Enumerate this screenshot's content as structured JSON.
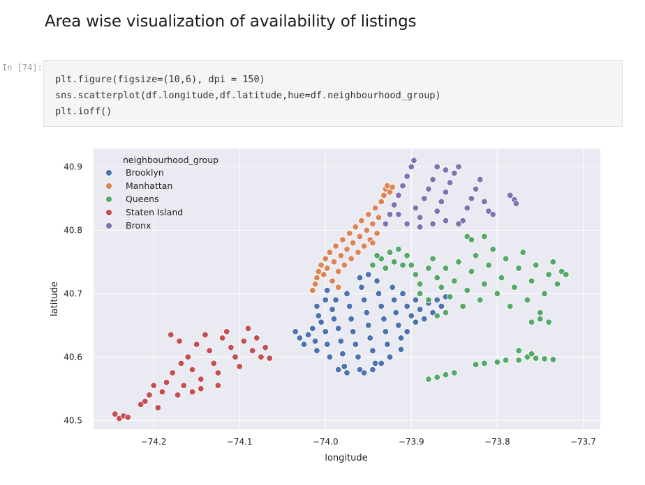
{
  "heading": "Area wise visualization of availability of listings",
  "cell": {
    "prompt": "In [74]:",
    "code_lines": [
      "plt.figure(figsize=(10,6), dpi = 150)",
      "sns.scatterplot(df.longitude,df.latitude,hue=df.neighbourhood_group)",
      "plt.ioff()"
    ]
  },
  "chart_data": {
    "type": "scatter",
    "xlabel": "longitude",
    "ylabel": "latitude",
    "xlim": [
      -74.27,
      -73.68
    ],
    "ylim": [
      40.486,
      40.929
    ],
    "xticks": [
      -74.2,
      -74.1,
      -74.0,
      -73.9,
      -73.8,
      -73.7
    ],
    "xtick_labels": [
      "−74.2",
      "−74.1",
      "−74.0",
      "−73.9",
      "−73.8",
      "−73.7"
    ],
    "yticks": [
      40.5,
      40.6,
      40.7,
      40.8,
      40.9
    ],
    "ytick_labels": [
      "40.5",
      "40.6",
      "40.7",
      "40.8",
      "40.9"
    ],
    "grid": true,
    "legend_title": "neighbourhood_group",
    "legend_position": "top-left",
    "series": [
      {
        "name": "Brooklyn",
        "color": "#4c72b0",
        "points": [
          [
            -74.035,
            40.64
          ],
          [
            -74.03,
            40.63
          ],
          [
            -74.025,
            40.62
          ],
          [
            -74.02,
            40.635
          ],
          [
            -74.015,
            40.645
          ],
          [
            -74.012,
            40.625
          ],
          [
            -74.01,
            40.61
          ],
          [
            -74.005,
            40.655
          ],
          [
            -74.0,
            40.64
          ],
          [
            -73.998,
            40.62
          ],
          [
            -73.995,
            40.6
          ],
          [
            -73.992,
            40.675
          ],
          [
            -73.99,
            40.66
          ],
          [
            -73.988,
            40.69
          ],
          [
            -73.985,
            40.645
          ],
          [
            -73.982,
            40.625
          ],
          [
            -73.98,
            40.605
          ],
          [
            -73.978,
            40.585
          ],
          [
            -73.975,
            40.7
          ],
          [
            -73.972,
            40.68
          ],
          [
            -73.97,
            40.66
          ],
          [
            -73.968,
            40.64
          ],
          [
            -73.965,
            40.62
          ],
          [
            -73.962,
            40.6
          ],
          [
            -73.96,
            40.58
          ],
          [
            -73.958,
            40.71
          ],
          [
            -73.955,
            40.69
          ],
          [
            -73.952,
            40.67
          ],
          [
            -73.95,
            40.65
          ],
          [
            -73.948,
            40.63
          ],
          [
            -73.945,
            40.61
          ],
          [
            -73.942,
            40.59
          ],
          [
            -73.94,
            40.72
          ],
          [
            -73.938,
            40.7
          ],
          [
            -73.935,
            40.68
          ],
          [
            -73.932,
            40.66
          ],
          [
            -73.93,
            40.64
          ],
          [
            -73.928,
            40.62
          ],
          [
            -73.925,
            40.6
          ],
          [
            -73.922,
            40.71
          ],
          [
            -73.92,
            40.69
          ],
          [
            -73.918,
            40.67
          ],
          [
            -73.915,
            40.65
          ],
          [
            -73.912,
            40.63
          ],
          [
            -73.91,
            40.7
          ],
          [
            -73.905,
            40.68
          ],
          [
            -73.9,
            40.665
          ],
          [
            -73.895,
            40.69
          ],
          [
            -73.89,
            40.675
          ],
          [
            -73.885,
            40.66
          ],
          [
            -73.88,
            40.685
          ],
          [
            -73.875,
            40.67
          ],
          [
            -73.87,
            40.69
          ],
          [
            -73.865,
            40.68
          ],
          [
            -73.86,
            40.695
          ],
          [
            -73.955,
            40.575
          ],
          [
            -73.945,
            40.58
          ],
          [
            -73.935,
            40.59
          ],
          [
            -73.975,
            40.575
          ],
          [
            -73.985,
            40.58
          ],
          [
            -73.96,
            40.725
          ],
          [
            -73.95,
            40.73
          ],
          [
            -74.0,
            40.69
          ],
          [
            -74.01,
            40.68
          ],
          [
            -74.008,
            40.665
          ],
          [
            -73.998,
            40.705
          ],
          [
            -73.912,
            40.612
          ],
          [
            -73.905,
            40.64
          ],
          [
            -73.895,
            40.655
          ]
        ]
      },
      {
        "name": "Manhattan",
        "color": "#dd8452",
        "points": [
          [
            -74.015,
            40.705
          ],
          [
            -74.012,
            40.715
          ],
          [
            -74.01,
            40.725
          ],
          [
            -74.008,
            40.735
          ],
          [
            -74.005,
            40.745
          ],
          [
            -74.002,
            40.73
          ],
          [
            -74.0,
            40.755
          ],
          [
            -73.998,
            40.74
          ],
          [
            -73.995,
            40.765
          ],
          [
            -73.992,
            40.72
          ],
          [
            -73.99,
            40.75
          ],
          [
            -73.988,
            40.775
          ],
          [
            -73.985,
            40.735
          ],
          [
            -73.982,
            40.76
          ],
          [
            -73.98,
            40.785
          ],
          [
            -73.978,
            40.745
          ],
          [
            -73.975,
            40.77
          ],
          [
            -73.972,
            40.795
          ],
          [
            -73.97,
            40.755
          ],
          [
            -73.968,
            40.78
          ],
          [
            -73.965,
            40.805
          ],
          [
            -73.962,
            40.765
          ],
          [
            -73.96,
            40.79
          ],
          [
            -73.958,
            40.815
          ],
          [
            -73.955,
            40.775
          ],
          [
            -73.952,
            40.8
          ],
          [
            -73.95,
            40.825
          ],
          [
            -73.948,
            40.785
          ],
          [
            -73.945,
            40.81
          ],
          [
            -73.942,
            40.835
          ],
          [
            -73.94,
            40.795
          ],
          [
            -73.938,
            40.82
          ],
          [
            -73.935,
            40.845
          ],
          [
            -73.932,
            40.855
          ],
          [
            -73.93,
            40.865
          ],
          [
            -73.928,
            40.87
          ],
          [
            -73.925,
            40.86
          ],
          [
            -73.922,
            40.868
          ],
          [
            -73.945,
            40.78
          ],
          [
            -73.985,
            40.71
          ]
        ]
      },
      {
        "name": "Queens",
        "color": "#55a868",
        "points": [
          [
            -73.945,
            40.745
          ],
          [
            -73.935,
            40.755
          ],
          [
            -73.925,
            40.765
          ],
          [
            -73.915,
            40.77
          ],
          [
            -73.905,
            40.76
          ],
          [
            -73.9,
            40.745
          ],
          [
            -73.895,
            40.73
          ],
          [
            -73.89,
            40.715
          ],
          [
            -73.88,
            40.74
          ],
          [
            -73.875,
            40.755
          ],
          [
            -73.87,
            40.725
          ],
          [
            -73.865,
            40.71
          ],
          [
            -73.86,
            40.74
          ],
          [
            -73.855,
            40.695
          ],
          [
            -73.85,
            40.72
          ],
          [
            -73.845,
            40.75
          ],
          [
            -73.84,
            40.68
          ],
          [
            -73.835,
            40.705
          ],
          [
            -73.83,
            40.735
          ],
          [
            -73.825,
            40.76
          ],
          [
            -73.82,
            40.69
          ],
          [
            -73.815,
            40.715
          ],
          [
            -73.81,
            40.745
          ],
          [
            -73.805,
            40.77
          ],
          [
            -73.8,
            40.7
          ],
          [
            -73.795,
            40.725
          ],
          [
            -73.79,
            40.755
          ],
          [
            -73.785,
            40.68
          ],
          [
            -73.78,
            40.71
          ],
          [
            -73.775,
            40.74
          ],
          [
            -73.77,
            40.765
          ],
          [
            -73.765,
            40.69
          ],
          [
            -73.76,
            40.72
          ],
          [
            -73.755,
            40.745
          ],
          [
            -73.75,
            40.67
          ],
          [
            -73.745,
            40.7
          ],
          [
            -73.74,
            40.73
          ],
          [
            -73.735,
            40.75
          ],
          [
            -73.73,
            40.715
          ],
          [
            -73.725,
            40.735
          ],
          [
            -73.72,
            40.73
          ],
          [
            -73.74,
            40.655
          ],
          [
            -73.75,
            40.66
          ],
          [
            -73.76,
            40.655
          ],
          [
            -73.87,
            40.665
          ],
          [
            -73.86,
            40.67
          ],
          [
            -73.88,
            40.69
          ],
          [
            -73.89,
            40.7
          ],
          [
            -73.91,
            40.745
          ],
          [
            -73.92,
            40.75
          ],
          [
            -73.93,
            40.74
          ],
          [
            -73.94,
            40.76
          ],
          [
            -73.835,
            40.79
          ],
          [
            -73.83,
            40.785
          ],
          [
            -73.815,
            40.79
          ],
          [
            -73.775,
            40.595
          ],
          [
            -73.765,
            40.6
          ],
          [
            -73.755,
            40.598
          ],
          [
            -73.745,
            40.597
          ],
          [
            -73.735,
            40.596
          ],
          [
            -73.79,
            40.595
          ],
          [
            -73.8,
            40.592
          ],
          [
            -73.815,
            40.59
          ],
          [
            -73.825,
            40.588
          ],
          [
            -73.85,
            40.575
          ],
          [
            -73.86,
            40.572
          ],
          [
            -73.87,
            40.568
          ],
          [
            -73.88,
            40.565
          ],
          [
            -73.775,
            40.61
          ],
          [
            -73.76,
            40.605
          ]
        ]
      },
      {
        "name": "Staten Island",
        "color": "#c44e52",
        "points": [
          [
            -74.245,
            40.51
          ],
          [
            -74.24,
            40.503
          ],
          [
            -74.235,
            40.507
          ],
          [
            -74.23,
            40.505
          ],
          [
            -74.215,
            40.525
          ],
          [
            -74.21,
            40.53
          ],
          [
            -74.205,
            40.54
          ],
          [
            -74.2,
            40.555
          ],
          [
            -74.195,
            40.52
          ],
          [
            -74.19,
            40.545
          ],
          [
            -74.185,
            40.56
          ],
          [
            -74.178,
            40.575
          ],
          [
            -74.172,
            40.54
          ],
          [
            -74.168,
            40.59
          ],
          [
            -74.165,
            40.555
          ],
          [
            -74.16,
            40.6
          ],
          [
            -74.155,
            40.545
          ],
          [
            -74.15,
            40.62
          ],
          [
            -74.145,
            40.565
          ],
          [
            -74.14,
            40.635
          ],
          [
            -74.135,
            40.61
          ],
          [
            -74.13,
            40.59
          ],
          [
            -74.125,
            40.575
          ],
          [
            -74.12,
            40.63
          ],
          [
            -74.115,
            40.64
          ],
          [
            -74.11,
            40.615
          ],
          [
            -74.105,
            40.6
          ],
          [
            -74.1,
            40.585
          ],
          [
            -74.095,
            40.625
          ],
          [
            -74.09,
            40.645
          ],
          [
            -74.085,
            40.61
          ],
          [
            -74.08,
            40.63
          ],
          [
            -74.075,
            40.6
          ],
          [
            -74.07,
            40.615
          ],
          [
            -74.065,
            40.598
          ],
          [
            -74.18,
            40.635
          ],
          [
            -74.17,
            40.625
          ],
          [
            -74.155,
            40.58
          ],
          [
            -74.145,
            40.55
          ],
          [
            -74.125,
            40.555
          ]
        ]
      },
      {
        "name": "Bronx",
        "color": "#8172b2",
        "points": [
          [
            -73.93,
            40.81
          ],
          [
            -73.925,
            40.825
          ],
          [
            -73.92,
            40.84
          ],
          [
            -73.915,
            40.855
          ],
          [
            -73.91,
            40.87
          ],
          [
            -73.905,
            40.885
          ],
          [
            -73.9,
            40.9
          ],
          [
            -73.897,
            40.91
          ],
          [
            -73.895,
            40.835
          ],
          [
            -73.89,
            40.82
          ],
          [
            -73.885,
            40.85
          ],
          [
            -73.88,
            40.865
          ],
          [
            -73.875,
            40.88
          ],
          [
            -73.87,
            40.83
          ],
          [
            -73.865,
            40.845
          ],
          [
            -73.86,
            40.86
          ],
          [
            -73.855,
            40.875
          ],
          [
            -73.85,
            40.89
          ],
          [
            -73.845,
            40.9
          ],
          [
            -73.84,
            40.815
          ],
          [
            -73.835,
            40.835
          ],
          [
            -73.83,
            40.85
          ],
          [
            -73.825,
            40.865
          ],
          [
            -73.82,
            40.88
          ],
          [
            -73.815,
            40.845
          ],
          [
            -73.81,
            40.83
          ],
          [
            -73.805,
            40.825
          ],
          [
            -73.845,
            40.81
          ],
          [
            -73.86,
            40.815
          ],
          [
            -73.875,
            40.81
          ],
          [
            -73.89,
            40.805
          ],
          [
            -73.905,
            40.81
          ],
          [
            -73.915,
            40.825
          ],
          [
            -73.785,
            40.855
          ],
          [
            -73.78,
            40.848
          ],
          [
            -73.778,
            40.842
          ],
          [
            -73.86,
            40.895
          ],
          [
            -73.87,
            40.9
          ]
        ]
      }
    ]
  }
}
